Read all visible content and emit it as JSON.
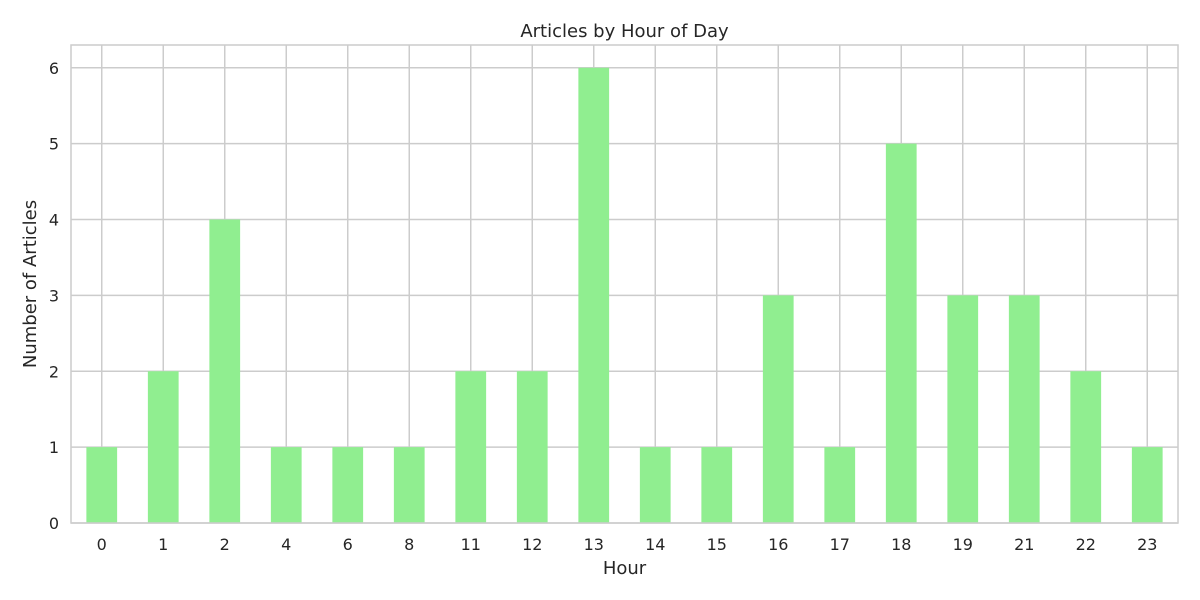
{
  "chart_data": {
    "type": "bar",
    "title": "Articles by Hour of Day",
    "xlabel": "Hour",
    "ylabel": "Number of Articles",
    "categories": [
      "0",
      "1",
      "2",
      "4",
      "6",
      "8",
      "11",
      "12",
      "13",
      "14",
      "15",
      "16",
      "17",
      "18",
      "19",
      "21",
      "22",
      "23"
    ],
    "values": [
      1,
      2,
      4,
      1,
      1,
      1,
      2,
      2,
      6,
      1,
      1,
      3,
      1,
      5,
      3,
      3,
      2,
      1
    ],
    "ylim": [
      0,
      6.3
    ],
    "yticks": [
      0,
      1,
      2,
      3,
      4,
      5,
      6
    ],
    "grid": true,
    "legend": "none",
    "colors": {
      "bar": "#90ee90",
      "grid": "#cccccc",
      "frame": "#cccccc",
      "text": "#262626",
      "background": "#ffffff"
    }
  }
}
